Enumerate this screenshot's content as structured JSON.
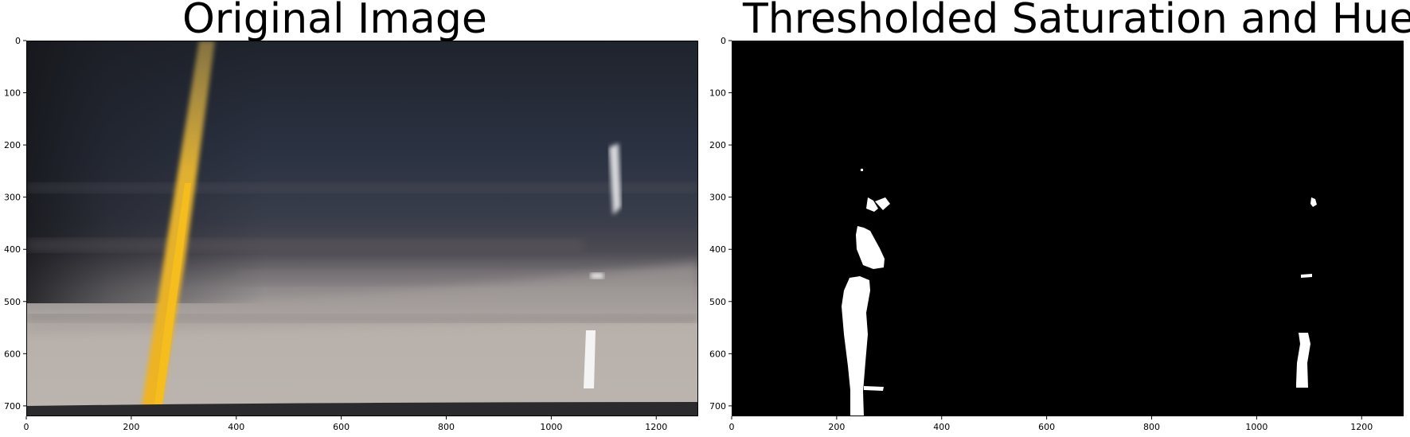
{
  "chart_data": [
    {
      "type": "image",
      "title": "Original Image",
      "xlim": [
        0,
        1280
      ],
      "ylim": [
        720,
        0
      ],
      "xticks": [
        0,
        200,
        400,
        600,
        800,
        1000,
        1200
      ],
      "yticks": [
        0,
        100,
        200,
        300,
        400,
        500,
        600,
        700
      ],
      "content": "road-photo",
      "colors": {
        "sky": "#2a2f3f",
        "road": "#b5aea8",
        "yellow_line": "#e8b020",
        "white_line": "#f2f2f2"
      }
    },
    {
      "type": "image",
      "title": "Thresholded Saturation and Hue",
      "xlim": [
        0,
        1280
      ],
      "ylim": [
        720,
        0
      ],
      "xticks": [
        0,
        200,
        400,
        600,
        800,
        1000,
        1200
      ],
      "yticks": [
        0,
        100,
        200,
        300,
        400,
        500,
        600,
        700
      ],
      "content": "binary-mask",
      "colors": {
        "background": "#000000",
        "foreground": "#ffffff"
      }
    }
  ]
}
